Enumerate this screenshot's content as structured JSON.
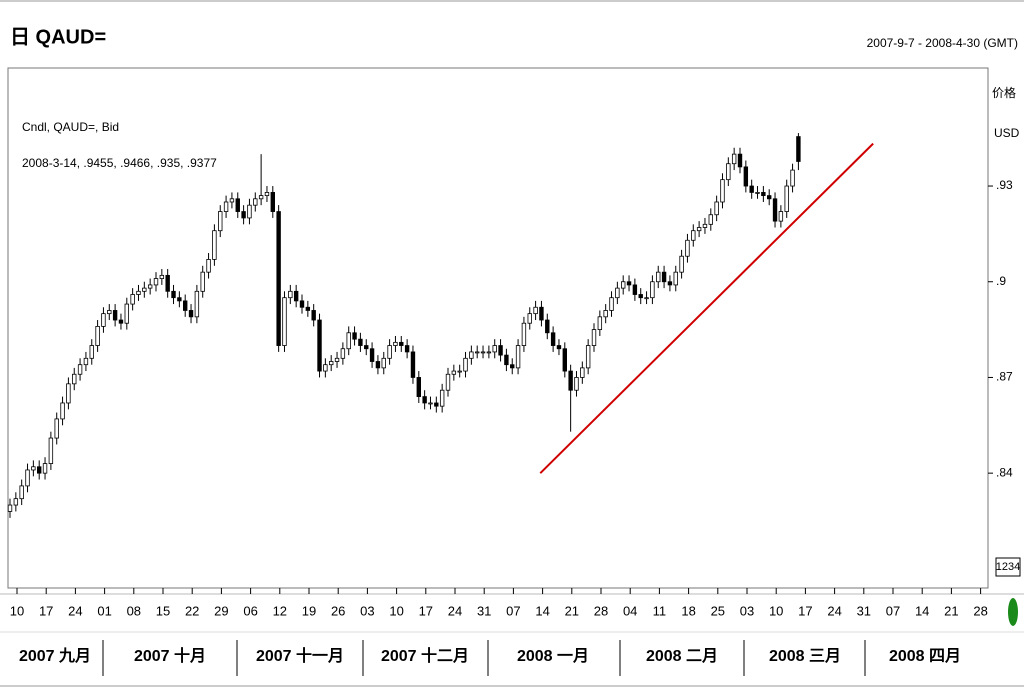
{
  "chart_data": {
    "type": "candlestick",
    "title": "日 QAUD=",
    "range_label": "2007-9-7 - 2008-4-30 (GMT)",
    "legend_lines": [
      "Cndl, QAUD=, Bid",
      "2008-3-14, .9455, .9466, .935, .9377"
    ],
    "y_axis_label": "价格",
    "y_axis_unit": "USD",
    "axis_box": "1234",
    "color": "#000000",
    "ylim": [
      0.804,
      0.967
    ],
    "yticks": [
      {
        "value": 0.93,
        "label": ".93"
      },
      {
        "value": 0.9,
        "label": ".9"
      },
      {
        "value": 0.87,
        "label": ".87"
      },
      {
        "value": 0.84,
        "label": ".84"
      }
    ],
    "xtick_labels": [
      "10",
      "17",
      "24",
      "01",
      "08",
      "15",
      "22",
      "29",
      "06",
      "12",
      "19",
      "26",
      "03",
      "10",
      "17",
      "24",
      "31",
      "07",
      "14",
      "21",
      "28",
      "04",
      "11",
      "18",
      "25",
      "03",
      "10",
      "17",
      "24",
      "31",
      "07",
      "14",
      "21",
      "28"
    ],
    "months": [
      "2007 九月",
      "2007 十月",
      "2007 十一月",
      "2007 十二月",
      "2008 一月",
      "2008 二月",
      "2008 三月",
      "2008 四月"
    ],
    "open": [
      0.828,
      0.83,
      0.832,
      0.836,
      0.841,
      0.842,
      0.84,
      0.843,
      0.851,
      0.857,
      0.862,
      0.868,
      0.871,
      0.874,
      0.876,
      0.88,
      0.886,
      0.89,
      0.891,
      0.888,
      0.887,
      0.893,
      0.896,
      0.897,
      0.898,
      0.899,
      0.901,
      0.902,
      0.897,
      0.895,
      0.894,
      0.891,
      0.889,
      0.897,
      0.903,
      0.907,
      0.916,
      0.922,
      0.925,
      0.926,
      0.922,
      0.92,
      0.924,
      0.926,
      0.927,
      0.928,
      0.922,
      0.88,
      0.895,
      0.897,
      0.894,
      0.892,
      0.891,
      0.888,
      0.872,
      0.874,
      0.875,
      0.876,
      0.879,
      0.884,
      0.882,
      0.88,
      0.879,
      0.875,
      0.873,
      0.876,
      0.88,
      0.881,
      0.88,
      0.878,
      0.87,
      0.864,
      0.862,
      0.862,
      0.861,
      0.866,
      0.871,
      0.872,
      0.872,
      0.876,
      0.878,
      0.878,
      0.878,
      0.878,
      0.88,
      0.877,
      0.874,
      0.873,
      0.88,
      0.887,
      0.89,
      0.892,
      0.888,
      0.884,
      0.88,
      0.879,
      0.872,
      0.866,
      0.87,
      0.873,
      0.88,
      0.885,
      0.889,
      0.891,
      0.895,
      0.898,
      0.9,
      0.899,
      0.896,
      0.895,
      0.895,
      0.9,
      0.903,
      0.9,
      0.899,
      0.903,
      0.908,
      0.913,
      0.916,
      0.917,
      0.918,
      0.921,
      0.925,
      0.932,
      0.937,
      0.94,
      0.936,
      0.93,
      0.928,
      0.928,
      0.927,
      0.926,
      0.919,
      0.922,
      0.93,
      0.9455
    ],
    "high": [
      0.832,
      0.834,
      0.838,
      0.843,
      0.844,
      0.844,
      0.845,
      0.853,
      0.859,
      0.864,
      0.87,
      0.873,
      0.876,
      0.878,
      0.882,
      0.888,
      0.892,
      0.893,
      0.893,
      0.89,
      0.895,
      0.898,
      0.899,
      0.9,
      0.901,
      0.903,
      0.904,
      0.904,
      0.899,
      0.897,
      0.896,
      0.893,
      0.899,
      0.905,
      0.909,
      0.918,
      0.924,
      0.927,
      0.928,
      0.928,
      0.924,
      0.926,
      0.928,
      0.94,
      0.93,
      0.93,
      0.924,
      0.897,
      0.899,
      0.899,
      0.896,
      0.894,
      0.893,
      0.89,
      0.876,
      0.877,
      0.878,
      0.881,
      0.886,
      0.886,
      0.884,
      0.882,
      0.881,
      0.877,
      0.878,
      0.882,
      0.883,
      0.883,
      0.882,
      0.88,
      0.872,
      0.866,
      0.864,
      0.864,
      0.868,
      0.873,
      0.874,
      0.874,
      0.878,
      0.88,
      0.88,
      0.88,
      0.88,
      0.882,
      0.882,
      0.879,
      0.876,
      0.882,
      0.889,
      0.892,
      0.894,
      0.894,
      0.89,
      0.886,
      0.882,
      0.881,
      0.874,
      0.872,
      0.875,
      0.882,
      0.887,
      0.891,
      0.893,
      0.897,
      0.9,
      0.902,
      0.902,
      0.901,
      0.898,
      0.897,
      0.902,
      0.905,
      0.905,
      0.902,
      0.905,
      0.91,
      0.915,
      0.918,
      0.919,
      0.92,
      0.923,
      0.927,
      0.934,
      0.939,
      0.942,
      0.942,
      0.938,
      0.932,
      0.93,
      0.93,
      0.929,
      0.928,
      0.924,
      0.932,
      0.937,
      0.9466
    ],
    "low": [
      0.826,
      0.828,
      0.83,
      0.834,
      0.839,
      0.838,
      0.838,
      0.841,
      0.849,
      0.855,
      0.86,
      0.866,
      0.869,
      0.872,
      0.874,
      0.878,
      0.884,
      0.888,
      0.886,
      0.885,
      0.885,
      0.891,
      0.894,
      0.895,
      0.896,
      0.897,
      0.899,
      0.895,
      0.893,
      0.892,
      0.889,
      0.887,
      0.887,
      0.895,
      0.901,
      0.905,
      0.914,
      0.92,
      0.923,
      0.92,
      0.918,
      0.918,
      0.922,
      0.924,
      0.925,
      0.92,
      0.878,
      0.878,
      0.893,
      0.892,
      0.89,
      0.889,
      0.886,
      0.87,
      0.87,
      0.872,
      0.873,
      0.874,
      0.877,
      0.88,
      0.878,
      0.877,
      0.873,
      0.871,
      0.871,
      0.874,
      0.878,
      0.878,
      0.876,
      0.868,
      0.862,
      0.86,
      0.86,
      0.859,
      0.859,
      0.864,
      0.869,
      0.87,
      0.87,
      0.874,
      0.876,
      0.876,
      0.876,
      0.876,
      0.875,
      0.872,
      0.871,
      0.871,
      0.878,
      0.885,
      0.888,
      0.886,
      0.882,
      0.878,
      0.877,
      0.87,
      0.853,
      0.864,
      0.868,
      0.871,
      0.878,
      0.883,
      0.887,
      0.889,
      0.893,
      0.896,
      0.897,
      0.894,
      0.893,
      0.893,
      0.893,
      0.898,
      0.898,
      0.897,
      0.897,
      0.901,
      0.906,
      0.911,
      0.914,
      0.915,
      0.916,
      0.919,
      0.923,
      0.93,
      0.935,
      0.934,
      0.928,
      0.926,
      0.926,
      0.925,
      0.924,
      0.917,
      0.917,
      0.92,
      0.928,
      0.935
    ],
    "close": [
      0.83,
      0.832,
      0.836,
      0.841,
      0.842,
      0.84,
      0.843,
      0.851,
      0.857,
      0.862,
      0.868,
      0.871,
      0.874,
      0.876,
      0.88,
      0.886,
      0.89,
      0.891,
      0.888,
      0.887,
      0.893,
      0.896,
      0.897,
      0.898,
      0.899,
      0.901,
      0.902,
      0.897,
      0.895,
      0.894,
      0.891,
      0.889,
      0.897,
      0.903,
      0.907,
      0.916,
      0.922,
      0.925,
      0.926,
      0.922,
      0.92,
      0.924,
      0.926,
      0.927,
      0.928,
      0.922,
      0.88,
      0.895,
      0.897,
      0.894,
      0.892,
      0.891,
      0.888,
      0.872,
      0.874,
      0.875,
      0.876,
      0.879,
      0.884,
      0.882,
      0.88,
      0.879,
      0.875,
      0.873,
      0.876,
      0.88,
      0.881,
      0.88,
      0.878,
      0.87,
      0.864,
      0.862,
      0.862,
      0.861,
      0.866,
      0.871,
      0.872,
      0.872,
      0.876,
      0.878,
      0.878,
      0.878,
      0.878,
      0.88,
      0.877,
      0.874,
      0.873,
      0.88,
      0.887,
      0.89,
      0.892,
      0.888,
      0.884,
      0.88,
      0.879,
      0.872,
      0.866,
      0.87,
      0.873,
      0.88,
      0.885,
      0.889,
      0.891,
      0.895,
      0.898,
      0.9,
      0.899,
      0.896,
      0.895,
      0.895,
      0.9,
      0.903,
      0.9,
      0.899,
      0.903,
      0.908,
      0.913,
      0.916,
      0.917,
      0.918,
      0.921,
      0.925,
      0.932,
      0.937,
      0.94,
      0.936,
      0.93,
      0.928,
      0.928,
      0.927,
      0.926,
      0.919,
      0.922,
      0.93,
      0.935,
      0.9377
    ],
    "trendline": {
      "x": [
        90.8,
        147.8
      ],
      "y": [
        0.84,
        0.9433
      ],
      "color": "#d00000"
    }
  }
}
